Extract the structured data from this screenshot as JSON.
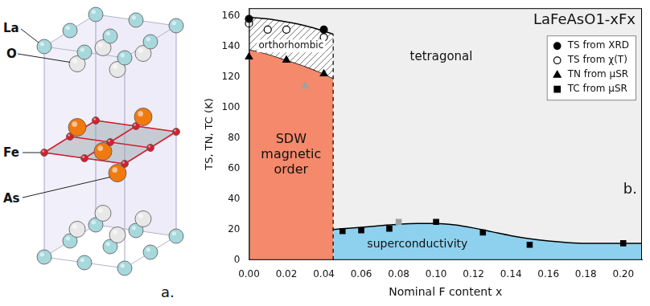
{
  "diagram": {
    "letter": "a.",
    "atoms": [
      {
        "label": "La",
        "color": "#a6d8dc"
      },
      {
        "label": "O",
        "color": "#e8e8e8"
      },
      {
        "label": "Fe",
        "color": "#d42030"
      },
      {
        "label": "As",
        "color": "#f07a10"
      }
    ]
  },
  "chart_data": {
    "type": "scatter",
    "title": "LaFeAsO1-xFx",
    "panel_letter": "b.",
    "x_label": "Nominal F content x",
    "y_label": "TS, TN, TC (K)",
    "xlim": [
      0,
      0.21
    ],
    "xticks": [
      {
        "value": 0,
        "label": "0.00"
      },
      {
        "value": 0.02,
        "label": "0.02"
      },
      {
        "value": 0.04,
        "label": "0.04"
      },
      {
        "value": 0.06,
        "label": "0.06"
      },
      {
        "value": 0.08,
        "label": "0.08"
      },
      {
        "value": 0.1,
        "label": "0.10"
      },
      {
        "value": 0.12,
        "label": "0.12"
      },
      {
        "value": 0.14,
        "label": "0.14"
      },
      {
        "value": 0.16,
        "label": "0.16"
      },
      {
        "value": 0.18,
        "label": "0.18"
      },
      {
        "value": 0.2,
        "label": "0.20"
      }
    ],
    "ylim": [
      0,
      165
    ],
    "yticks": [
      0,
      20,
      40,
      60,
      80,
      100,
      120,
      140,
      160
    ],
    "grid": false,
    "legend": "upper right",
    "series": [
      {
        "name": "TS from XRD",
        "marker": "circle",
        "color": "#000000",
        "x": [
          0,
          0.04
        ],
        "values": [
          158,
          151
        ]
      },
      {
        "name": "TS from χ(T)",
        "marker": "open_circle",
        "color": "#000000",
        "x": [
          0,
          0.01,
          0.02,
          0.04
        ],
        "values": [
          155,
          151,
          151,
          146
        ]
      },
      {
        "name": "TN from μSR",
        "marker": "triangle",
        "colors": [
          "#000000",
          "#000000",
          "#a0a0a0",
          "#000000"
        ],
        "x": [
          0,
          0.02,
          0.03,
          0.04
        ],
        "values": [
          133,
          131,
          114,
          122
        ]
      },
      {
        "name": "TC from μSR",
        "marker": "square",
        "colors": [
          "#000000",
          "#000000",
          "#000000",
          "#a0a0a0",
          "#000000",
          "#000000",
          "#000000",
          "#000000"
        ],
        "x": [
          0.05,
          0.06,
          0.075,
          0.08,
          0.1,
          0.125,
          0.15,
          0.2
        ],
        "values": [
          19,
          19.5,
          20.5,
          25,
          25,
          18,
          10,
          11
        ]
      }
    ],
    "phase_boundary": {
      "x": [
        0,
        0.01,
        0.02,
        0.03,
        0.04,
        0.045
      ],
      "upper": [
        159,
        158,
        156,
        153.5,
        150,
        148
      ],
      "lower": [
        138,
        135,
        131,
        127,
        122,
        119
      ]
    },
    "sc_dome": {
      "x": [
        0.045,
        0.05,
        0.06,
        0.07,
        0.08,
        0.09,
        0.1,
        0.11,
        0.12,
        0.13,
        0.14,
        0.15,
        0.16,
        0.17,
        0.18,
        0.19,
        0.2,
        0.21
      ],
      "values": [
        20,
        20.5,
        21.5,
        22.5,
        23.5,
        24,
        24,
        23,
        21,
        18.5,
        16,
        14,
        12.5,
        11.5,
        11,
        11,
        11,
        11
      ]
    },
    "regions": {
      "tetragonal": {
        "label": "tetragonal",
        "color": "#efefef"
      },
      "orthorhombic": {
        "label": "orthorhombic",
        "color": "#ffffff"
      },
      "sdw": {
        "label": "SDW magnetic order",
        "color": "#f4896b"
      },
      "superconductivity": {
        "label": "superconductivity",
        "color": "#8ed1ee"
      }
    }
  }
}
